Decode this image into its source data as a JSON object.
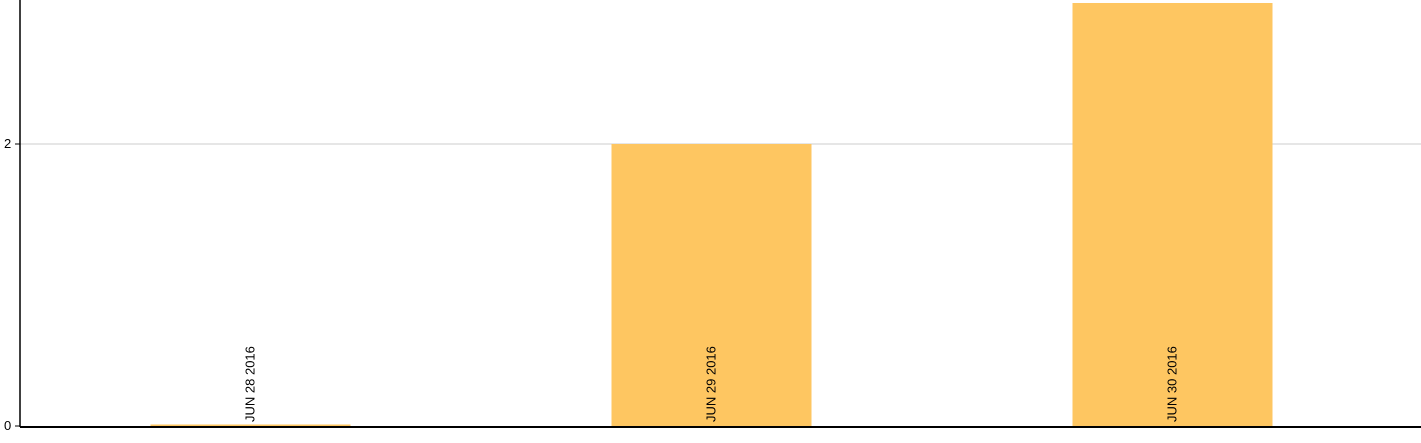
{
  "chart_data": {
    "type": "bar",
    "categories": [
      "JUN 28 2016",
      "JUN 29 2016",
      "JUN 30 2016"
    ],
    "values": [
      0,
      2,
      3
    ],
    "y_ticks": [
      "0",
      "2"
    ],
    "ylim": [
      0,
      3
    ],
    "grid": true,
    "bar_color": "#fec661",
    "grid_color": "#cccccc",
    "axis_color": "#000000"
  }
}
